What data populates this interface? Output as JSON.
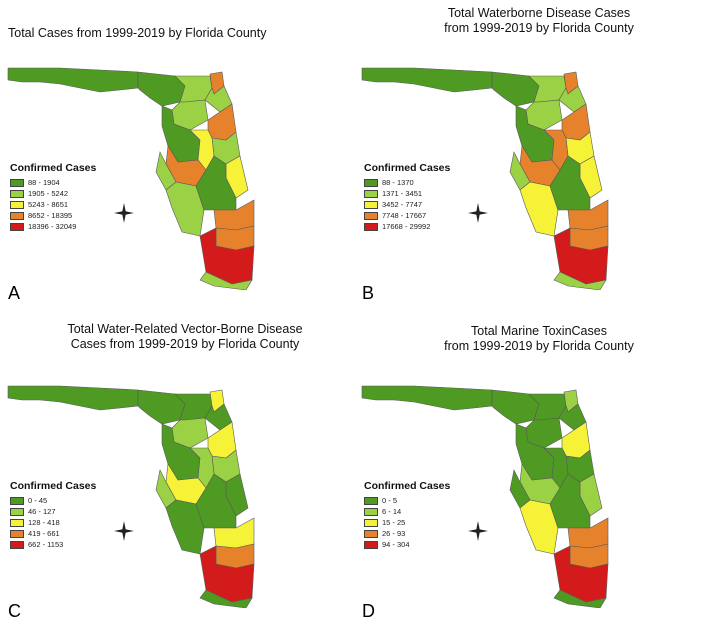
{
  "colors": {
    "c1": "#4f9a23",
    "c2": "#9bd145",
    "c3": "#f6f238",
    "c4": "#e6822c",
    "c5": "#d31b1b",
    "outline": "#5a5a5a"
  },
  "panels": [
    {
      "id": "A",
      "letter": "A",
      "title_lines": [
        "Total Cases from 1999-2019 by Florida County"
      ],
      "legend": {
        "title": "Confirmed Cases",
        "items": [
          "88 - 1904",
          "1905 - 5242",
          "5243 - 8651",
          "8652 - 18395",
          "18396 - 32049"
        ]
      },
      "fills": {
        "panhandle": "c1",
        "bigbend": "c1",
        "northeast": "c2",
        "jax": "c4",
        "coast_ne": "c2",
        "gainesville": "c2",
        "central": "c1",
        "orlando": "c4",
        "volusia": "c2",
        "polk": "c3",
        "tampa": "c4",
        "pinellas": "c2",
        "brevard": "c3",
        "southwest": "c2",
        "south_central": "c1",
        "palm_beach": "c4",
        "broward": "c4",
        "miami": "c5",
        "keys": "c2"
      }
    },
    {
      "id": "B",
      "letter": "B",
      "title_lines": [
        "Total Waterborne Disease Cases",
        "from 1999-2019 by Florida County"
      ],
      "legend": {
        "title": "Confirmed Cases",
        "items": [
          "88 - 1370",
          "1371 - 3451",
          "3452 - 7747",
          "7748 - 17667",
          "17668 - 29992"
        ]
      },
      "fills": {
        "panhandle": "c1",
        "bigbend": "c1",
        "northeast": "c2",
        "jax": "c4",
        "coast_ne": "c2",
        "gainesville": "c2",
        "central": "c1",
        "orlando": "c4",
        "volusia": "c3",
        "polk": "c4",
        "tampa": "c4",
        "pinellas": "c2",
        "brevard": "c3",
        "southwest": "c3",
        "south_central": "c1",
        "palm_beach": "c4",
        "broward": "c4",
        "miami": "c5",
        "keys": "c2"
      }
    },
    {
      "id": "C",
      "letter": "C",
      "title_lines": [
        "Total Water-Related Vector-Borne Disease",
        "Cases from 1999-2019 by Florida County"
      ],
      "legend": {
        "title": "Confirmed Cases",
        "items": [
          "0 - 45",
          "46 - 127",
          "128 - 418",
          "419 - 661",
          "662 - 1153"
        ]
      },
      "fills": {
        "panhandle": "c1",
        "bigbend": "c1",
        "northeast": "c1",
        "jax": "c3",
        "coast_ne": "c1",
        "gainesville": "c2",
        "central": "c1",
        "orlando": "c3",
        "volusia": "c2",
        "polk": "c2",
        "tampa": "c3",
        "pinellas": "c2",
        "brevard": "c1",
        "southwest": "c1",
        "south_central": "c1",
        "palm_beach": "c3",
        "broward": "c4",
        "miami": "c5",
        "keys": "c1"
      }
    },
    {
      "id": "D",
      "letter": "D",
      "title_lines": [
        "Total Marine ToxinCases",
        "from 1999-2019 by Florida County"
      ],
      "legend": {
        "title": "Confirmed Cases",
        "items": [
          "0 - 5",
          "6 - 14",
          "15 - 25",
          "26 - 93",
          "94 - 304"
        ]
      },
      "fills": {
        "panhandle": "c1",
        "bigbend": "c1",
        "northeast": "c1",
        "jax": "c2",
        "coast_ne": "c1",
        "gainesville": "c1",
        "central": "c1",
        "orlando": "c3",
        "volusia": "c1",
        "polk": "c1",
        "tampa": "c2",
        "pinellas": "c1",
        "brevard": "c2",
        "southwest": "c3",
        "south_central": "c1",
        "palm_beach": "c4",
        "broward": "c4",
        "miami": "c5",
        "keys": "c1"
      }
    }
  ]
}
